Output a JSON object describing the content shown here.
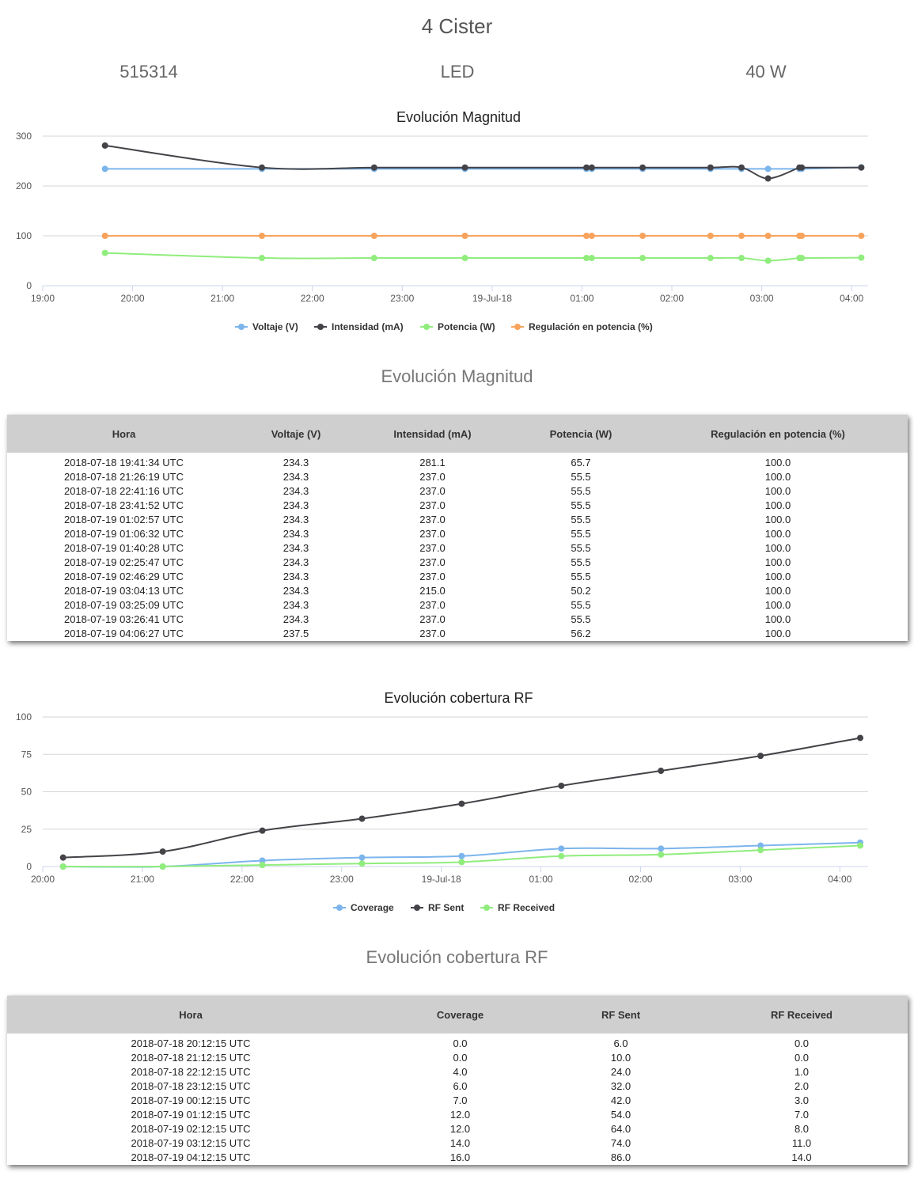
{
  "header": {
    "title": "4 Cister",
    "id": "515314",
    "type": "LED",
    "power": "40 W"
  },
  "magnitude": {
    "section_title": "Evolución Magnitud",
    "table_headers": [
      "Hora",
      "Voltaje (V)",
      "Intensidad (mA)",
      "Potencia (W)",
      "Regulación en potencia (%)"
    ],
    "rows": [
      [
        "2018-07-18 19:41:34 UTC",
        "234.3",
        "281.1",
        "65.7",
        "100.0"
      ],
      [
        "2018-07-18 21:26:19 UTC",
        "234.3",
        "237.0",
        "55.5",
        "100.0"
      ],
      [
        "2018-07-18 22:41:16 UTC",
        "234.3",
        "237.0",
        "55.5",
        "100.0"
      ],
      [
        "2018-07-18 23:41:52 UTC",
        "234.3",
        "237.0",
        "55.5",
        "100.0"
      ],
      [
        "2018-07-19 01:02:57 UTC",
        "234.3",
        "237.0",
        "55.5",
        "100.0"
      ],
      [
        "2018-07-19 01:06:32 UTC",
        "234.3",
        "237.0",
        "55.5",
        "100.0"
      ],
      [
        "2018-07-19 01:40:28 UTC",
        "234.3",
        "237.0",
        "55.5",
        "100.0"
      ],
      [
        "2018-07-19 02:25:47 UTC",
        "234.3",
        "237.0",
        "55.5",
        "100.0"
      ],
      [
        "2018-07-19 02:46:29 UTC",
        "234.3",
        "237.0",
        "55.5",
        "100.0"
      ],
      [
        "2018-07-19 03:04:13 UTC",
        "234.3",
        "215.0",
        "50.2",
        "100.0"
      ],
      [
        "2018-07-19 03:25:09 UTC",
        "234.3",
        "237.0",
        "55.5",
        "100.0"
      ],
      [
        "2018-07-19 03:26:41 UTC",
        "234.3",
        "237.0",
        "55.5",
        "100.0"
      ],
      [
        "2018-07-19 04:06:27 UTC",
        "237.5",
        "237.0",
        "56.2",
        "100.0"
      ]
    ]
  },
  "rf": {
    "section_title": "Evolución cobertura RF",
    "table_headers": [
      "Hora",
      "Coverage",
      "RF Sent",
      "RF Received"
    ],
    "rows": [
      [
        "2018-07-18 20:12:15 UTC",
        "0.0",
        "6.0",
        "0.0"
      ],
      [
        "2018-07-18 21:12:15 UTC",
        "0.0",
        "10.0",
        "0.0"
      ],
      [
        "2018-07-18 22:12:15 UTC",
        "4.0",
        "24.0",
        "1.0"
      ],
      [
        "2018-07-18 23:12:15 UTC",
        "6.0",
        "32.0",
        "2.0"
      ],
      [
        "2018-07-19 00:12:15 UTC",
        "7.0",
        "42.0",
        "3.0"
      ],
      [
        "2018-07-19 01:12:15 UTC",
        "12.0",
        "54.0",
        "7.0"
      ],
      [
        "2018-07-19 02:12:15 UTC",
        "12.0",
        "64.0",
        "8.0"
      ],
      [
        "2018-07-19 03:12:15 UTC",
        "14.0",
        "74.0",
        "11.0"
      ],
      [
        "2018-07-19 04:12:15 UTC",
        "16.0",
        "86.0",
        "14.0"
      ]
    ]
  },
  "chart_data": [
    {
      "type": "line",
      "title": "Evolución Magnitud",
      "x": [
        "2018-07-18 19:41:34",
        "2018-07-18 21:26:19",
        "2018-07-18 22:41:16",
        "2018-07-18 23:41:52",
        "2018-07-19 01:02:57",
        "2018-07-19 01:06:32",
        "2018-07-19 01:40:28",
        "2018-07-19 02:25:47",
        "2018-07-19 02:46:29",
        "2018-07-19 03:04:13",
        "2018-07-19 03:25:09",
        "2018-07-19 03:26:41",
        "2018-07-19 04:06:27"
      ],
      "xlim": [
        "2018-07-18 19:00",
        "2018-07-19 04:11"
      ],
      "x_ticks": [
        "19:00",
        "20:00",
        "21:00",
        "22:00",
        "23:00",
        "19-Jul-18",
        "01:00",
        "02:00",
        "03:00",
        "04:00"
      ],
      "ylim": [
        0,
        300
      ],
      "y_ticks": [
        "0",
        "100",
        "200",
        "300"
      ],
      "grid": true,
      "legend": "bottom",
      "series": [
        {
          "name": "Voltaje (V)",
          "color": "#7cb5ec",
          "values": [
            234.3,
            234.3,
            234.3,
            234.3,
            234.3,
            234.3,
            234.3,
            234.3,
            234.3,
            234.3,
            234.3,
            234.3,
            237.5
          ]
        },
        {
          "name": "Intensidad (mA)",
          "color": "#434348",
          "values": [
            281.1,
            237.0,
            237.0,
            237.0,
            237.0,
            237.0,
            237.0,
            237.0,
            237.0,
            215.0,
            237.0,
            237.0,
            237.0
          ]
        },
        {
          "name": "Potencia (W)",
          "color": "#90ed7d",
          "values": [
            65.7,
            55.5,
            55.5,
            55.5,
            55.5,
            55.5,
            55.5,
            55.5,
            55.5,
            50.2,
            55.5,
            55.5,
            56.2
          ]
        },
        {
          "name": "Regulación en potencia (%)",
          "color": "#f7a35c",
          "values": [
            100,
            100,
            100,
            100,
            100,
            100,
            100,
            100,
            100,
            100,
            100,
            100,
            100
          ]
        }
      ]
    },
    {
      "type": "line",
      "title": "Evolución cobertura RF",
      "x": [
        "2018-07-18 20:12:15",
        "2018-07-18 21:12:15",
        "2018-07-18 22:12:15",
        "2018-07-18 23:12:15",
        "2018-07-19 00:12:15",
        "2018-07-19 01:12:15",
        "2018-07-19 02:12:15",
        "2018-07-19 03:12:15",
        "2018-07-19 04:12:15"
      ],
      "xlim": [
        "2018-07-18 20:00",
        "2018-07-19 04:17"
      ],
      "x_ticks": [
        "20:00",
        "21:00",
        "22:00",
        "23:00",
        "19-Jul-18",
        "01:00",
        "02:00",
        "03:00",
        "04:00"
      ],
      "ylim": [
        0,
        100
      ],
      "y_ticks": [
        "0",
        "25",
        "50",
        "75",
        "100"
      ],
      "grid": true,
      "legend": "bottom",
      "series": [
        {
          "name": "Coverage",
          "color": "#7cb5ec",
          "values": [
            0,
            0,
            4,
            6,
            7,
            12,
            12,
            14,
            16
          ]
        },
        {
          "name": "RF Sent",
          "color": "#434348",
          "values": [
            6,
            10,
            24,
            32,
            42,
            54,
            64,
            74,
            86
          ]
        },
        {
          "name": "RF Received",
          "color": "#90ed7d",
          "values": [
            0,
            0,
            1,
            2,
            3,
            7,
            8,
            11,
            14
          ]
        }
      ]
    }
  ]
}
